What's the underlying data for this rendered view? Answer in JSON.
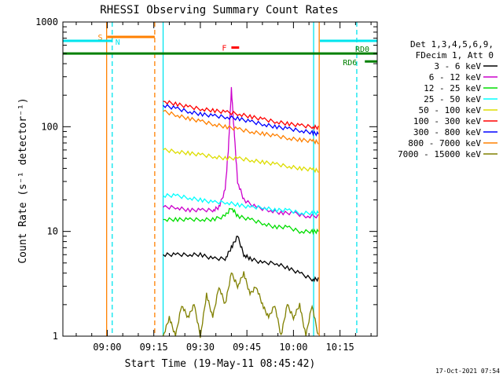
{
  "chart_data": {
    "type": "line",
    "title": "RHESSI Observing Summary Count Rates",
    "xlabel": "Start Time (19-May-11 08:45:42)",
    "ylabel": "Count Rate (s⁻¹ detector⁻¹)",
    "yscale": "log",
    "ylim": [
      1,
      1000
    ],
    "xlim_minutes": [
      525.7,
      627.0
    ],
    "x_ticks": [
      {
        "label": "09:00",
        "minute": 540
      },
      {
        "label": "09:15",
        "minute": 555
      },
      {
        "label": "09:30",
        "minute": 570
      },
      {
        "label": "09:45",
        "minute": 585
      },
      {
        "label": "10:00",
        "minute": 600
      },
      {
        "label": "10:15",
        "minute": 615
      }
    ],
    "y_ticks": [
      {
        "label": "1",
        "value": 1
      },
      {
        "label": "10",
        "value": 10
      },
      {
        "label": "100",
        "value": 100
      },
      {
        "label": "1000",
        "value": 1000
      }
    ],
    "legend_position": "right",
    "legend_header": [
      "Det 1,3,4,5,6,9,",
      "FDecim 1, Att 0"
    ],
    "series": [
      {
        "name": "3 - 6 keV",
        "color": "#000000",
        "x": [
          558,
          562,
          566,
          570,
          574,
          578,
          580,
          582,
          584,
          586,
          590,
          594,
          598,
          602,
          606,
          608
        ],
        "values": [
          6,
          6,
          6,
          6,
          5.5,
          5.5,
          7,
          9,
          6,
          5.5,
          5,
          5,
          4.5,
          4,
          3.5,
          3.5
        ]
      },
      {
        "name": "6 - 12 keV",
        "color": "#cc00cc",
        "x": [
          558,
          562,
          566,
          570,
          574,
          576,
          578,
          579,
          580,
          581,
          582,
          584,
          588,
          592,
          596,
          600,
          604,
          608
        ],
        "values": [
          17,
          17,
          16,
          16,
          16,
          17,
          25,
          60,
          230,
          80,
          30,
          20,
          17,
          16,
          15,
          15,
          14,
          14
        ]
      },
      {
        "name": "12 - 25 keV",
        "color": "#00dd00",
        "x": [
          558,
          562,
          566,
          570,
          574,
          578,
          580,
          582,
          586,
          590,
          594,
          598,
          602,
          606,
          608
        ],
        "values": [
          13,
          13,
          13,
          13,
          13,
          14,
          17,
          14,
          13,
          12,
          11,
          11,
          10,
          10,
          10
        ]
      },
      {
        "name": "25 - 50 keV",
        "color": "#00ffff",
        "x": [
          558,
          562,
          566,
          570,
          574,
          578,
          582,
          586,
          590,
          594,
          598,
          602,
          606,
          608
        ],
        "values": [
          22,
          22,
          21,
          20,
          19,
          19,
          18,
          17,
          17,
          16,
          16,
          15,
          15,
          15
        ]
      },
      {
        "name": "50 - 100 keV",
        "color": "#dddd00",
        "x": [
          558,
          562,
          566,
          570,
          574,
          578,
          582,
          586,
          590,
          594,
          598,
          602,
          606,
          608
        ],
        "values": [
          60,
          58,
          56,
          54,
          52,
          50,
          50,
          48,
          46,
          44,
          42,
          40,
          39,
          38
        ]
      },
      {
        "name": "100 - 300 keV",
        "color": "#ff0000",
        "x": [
          558,
          562,
          566,
          570,
          574,
          578,
          582,
          586,
          590,
          594,
          598,
          602,
          606,
          608
        ],
        "values": [
          175,
          165,
          155,
          148,
          143,
          138,
          133,
          125,
          118,
          112,
          107,
          103,
          100,
          98
        ]
      },
      {
        "name": "300 - 800 keV",
        "color": "#0000ff",
        "x": [
          558,
          562,
          566,
          570,
          574,
          578,
          582,
          586,
          590,
          594,
          598,
          602,
          606,
          608
        ],
        "values": [
          160,
          150,
          140,
          132,
          127,
          124,
          120,
          112,
          106,
          100,
          96,
          92,
          88,
          85
        ]
      },
      {
        "name": "800 - 7000 keV",
        "color": "#ff8000",
        "x": [
          558,
          562,
          566,
          570,
          574,
          578,
          582,
          586,
          590,
          594,
          598,
          602,
          606,
          608
        ],
        "values": [
          140,
          130,
          120,
          113,
          106,
          100,
          95,
          90,
          86,
          82,
          78,
          75,
          73,
          71
        ]
      },
      {
        "name": "7000 - 15000 keV",
        "color": "#808000",
        "x": [
          558,
          560,
          562,
          564,
          566,
          568,
          570,
          572,
          574,
          576,
          578,
          580,
          582,
          584,
          586,
          588,
          590,
          592,
          594,
          596,
          598,
          600,
          602,
          604,
          606,
          608
        ],
        "values": [
          1,
          1.5,
          1,
          2,
          1.5,
          2,
          1,
          2.5,
          1.5,
          3,
          2,
          4,
          3,
          4,
          2.5,
          3,
          2,
          1.5,
          2,
          1,
          2,
          1.5,
          2,
          1,
          2,
          1
        ]
      }
    ],
    "annotations": [
      {
        "label": "S",
        "color": "#ff8000",
        "x_start": 540,
        "x_end": 555.3,
        "y_value": 720
      },
      {
        "label": "N",
        "color": "#00e5ee",
        "x_start": 525.7,
        "x_end": 541.6,
        "y_value": 660
      },
      {
        "label": "F",
        "color": "#ff0000",
        "x_start": 580,
        "x_end": 582.5,
        "y_value": 570
      },
      {
        "label": "RD0",
        "color": "#008000",
        "x_start": 525.7,
        "x_end": 627,
        "y_value": 500
      },
      {
        "label": "RD6",
        "color": "#008000",
        "x_start": 623,
        "x_end": 627,
        "y_value": 420
      },
      {
        "label": "",
        "color": "#00e5ee",
        "x_start": 608.5,
        "x_end": 627,
        "y_value": 660
      }
    ],
    "vlines": [
      {
        "minute": 539.8,
        "color": "#ff8000",
        "style": "solid"
      },
      {
        "minute": 541.6,
        "color": "#00e5ee",
        "style": "dashed"
      },
      {
        "minute": 555.3,
        "color": "#ff8000",
        "style": "dashed"
      },
      {
        "minute": 558.0,
        "color": "#00e5ee",
        "style": "solid"
      },
      {
        "minute": 606.5,
        "color": "#00e5ee",
        "style": "solid"
      },
      {
        "minute": 608.3,
        "color": "#ff8000",
        "style": "solid"
      },
      {
        "minute": 620.4,
        "color": "#00e5ee",
        "style": "dashed"
      }
    ]
  },
  "footer": {
    "timestamp": "17-Oct-2021 07:54"
  }
}
